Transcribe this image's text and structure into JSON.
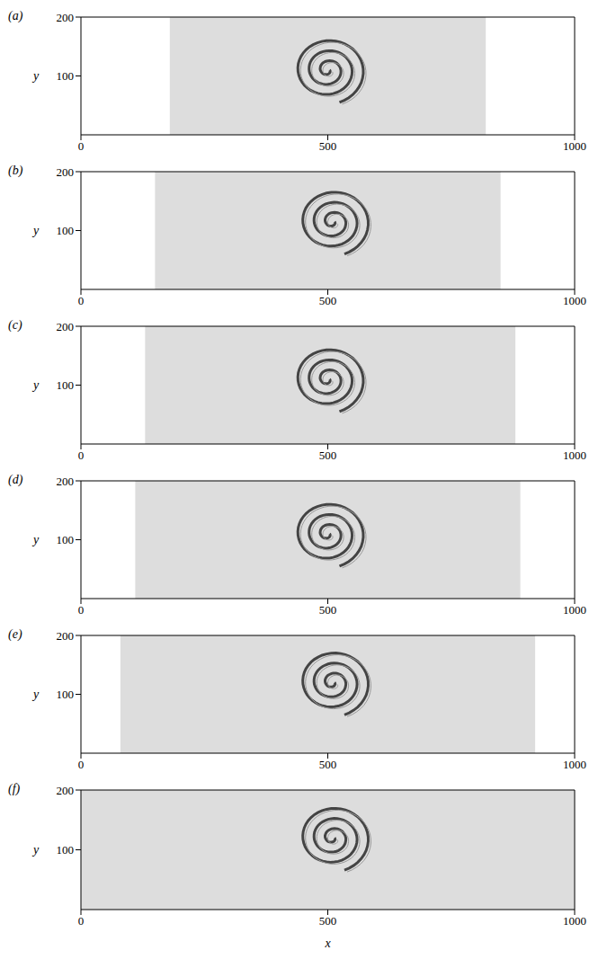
{
  "chart_data": [
    {
      "type": "field",
      "panel": "(a)",
      "xlim": [
        0,
        1000
      ],
      "xticks": [
        0,
        500,
        1000
      ],
      "ylim": [
        0,
        200
      ],
      "yticks": [
        100,
        200
      ],
      "y_label": "y",
      "mixing_region": [
        180,
        820
      ],
      "vortex_centers": [
        {
          "x": 500,
          "y": 110
        }
      ]
    },
    {
      "type": "field",
      "panel": "(b)",
      "xlim": [
        0,
        1000
      ],
      "xticks": [
        0,
        500,
        1000
      ],
      "ylim": [
        0,
        200
      ],
      "yticks": [
        100,
        200
      ],
      "y_label": "y",
      "mixing_region": [
        150,
        850
      ],
      "vortex_centers": [
        {
          "x": 510,
          "y": 115
        }
      ]
    },
    {
      "type": "field",
      "panel": "(c)",
      "xlim": [
        0,
        1000
      ],
      "xticks": [
        0,
        500,
        1000
      ],
      "ylim": [
        0,
        200
      ],
      "yticks": [
        100,
        200
      ],
      "y_label": "y",
      "mixing_region": [
        130,
        880
      ],
      "vortex_centers": [
        {
          "x": 500,
          "y": 110
        }
      ]
    },
    {
      "type": "field",
      "panel": "(d)",
      "xlim": [
        0,
        1000
      ],
      "xticks": [
        0,
        500,
        1000
      ],
      "ylim": [
        0,
        200
      ],
      "yticks": [
        100,
        200
      ],
      "y_label": "y",
      "mixing_region": [
        110,
        890
      ],
      "vortex_centers": [
        {
          "x": 500,
          "y": 110
        }
      ]
    },
    {
      "type": "field",
      "panel": "(e)",
      "xlim": [
        0,
        1000
      ],
      "xticks": [
        0,
        500,
        1000
      ],
      "ylim": [
        0,
        200
      ],
      "yticks": [
        100,
        200
      ],
      "y_label": "y",
      "mixing_region": [
        80,
        920
      ],
      "vortex_centers": [
        {
          "x": 510,
          "y": 120
        }
      ]
    },
    {
      "type": "field",
      "panel": "(f)",
      "xlim": [
        0,
        1000
      ],
      "xticks": [
        0,
        500,
        1000
      ],
      "ylim": [
        0,
        200
      ],
      "yticks": [
        100,
        200
      ],
      "y_label": "y",
      "x_label": "x",
      "mixing_region": [
        0,
        1000
      ],
      "vortex_centers": [
        {
          "x": 510,
          "y": 120
        }
      ]
    }
  ]
}
